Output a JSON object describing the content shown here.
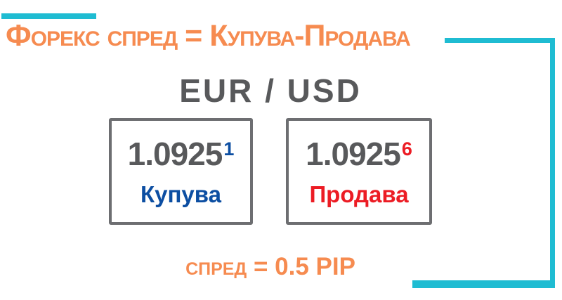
{
  "colors": {
    "accent_teal": "#1fbcd2",
    "accent_orange": "#f68b50",
    "buy_blue": "#0c4ea2",
    "sell_red": "#ec1c24",
    "text_dark": "#58595b",
    "box_border": "#6d6e71"
  },
  "title": "Форекс спред = Купува-Продава",
  "currency_pair": "EUR / USD",
  "quotes": {
    "buy": {
      "price": "1.0925",
      "pip_digit": "1",
      "label": "Купува"
    },
    "sell": {
      "price": "1.0925",
      "pip_digit": "6",
      "label": "Продава"
    }
  },
  "spread_note": "спред = 0.5 PIP"
}
